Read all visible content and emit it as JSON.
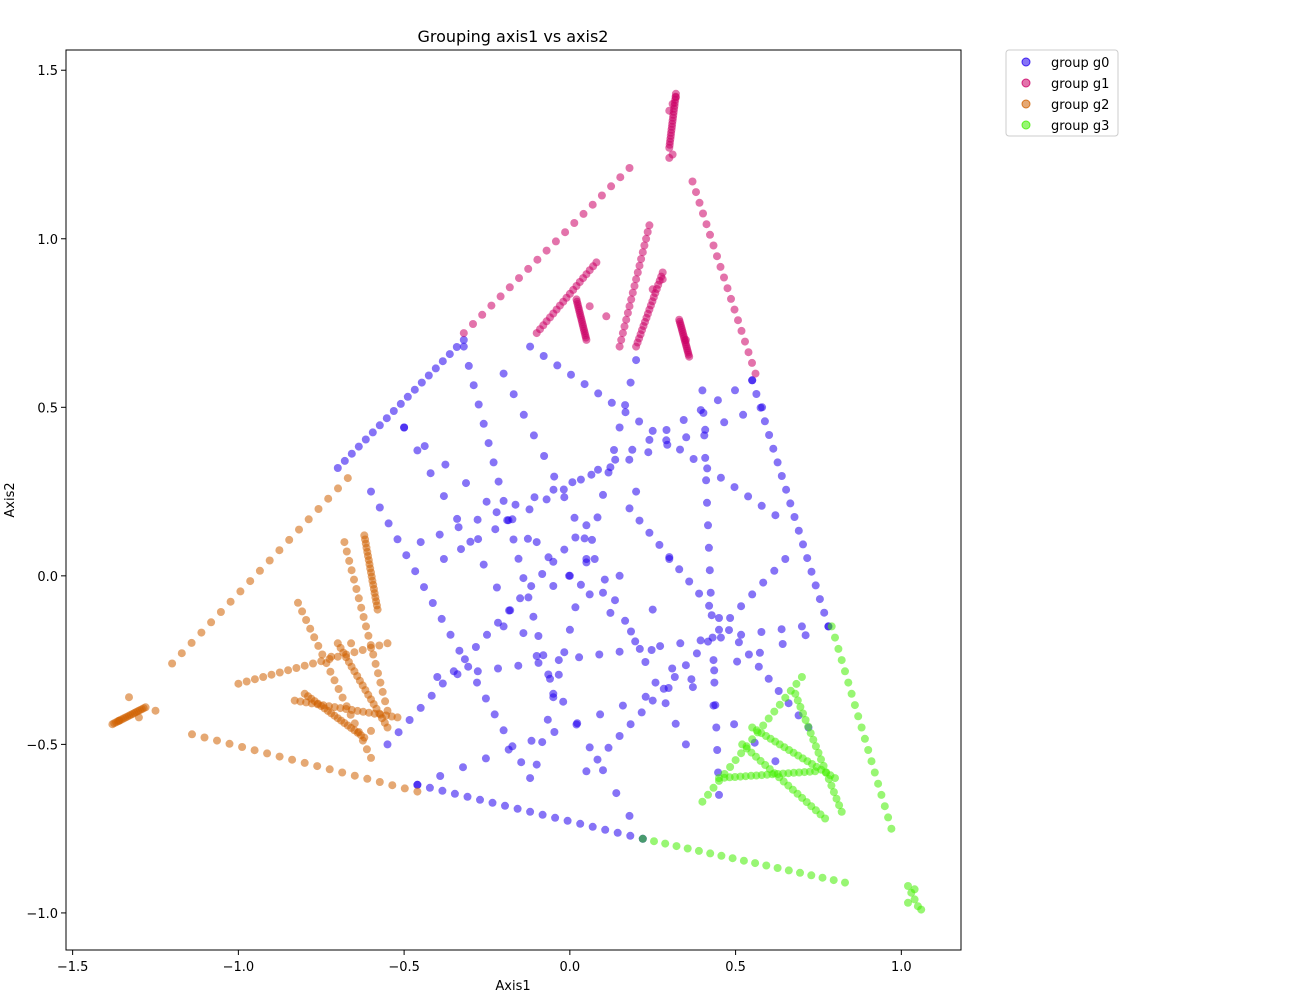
{
  "chart_data": {
    "type": "scatter",
    "title": "Grouping axis1 vs axis2",
    "xlabel": "Axis1",
    "ylabel": "Axis2",
    "xlim": [
      -1.52,
      1.18
    ],
    "ylim": [
      -1.11,
      1.56
    ],
    "x_ticks": [
      {
        "value": -1.5,
        "label": "−1.5"
      },
      {
        "value": -1.0,
        "label": "−1.0"
      },
      {
        "value": -0.5,
        "label": "−0.5"
      },
      {
        "value": 0.0,
        "label": "0.0"
      },
      {
        "value": 0.5,
        "label": "0.5"
      },
      {
        "value": 1.0,
        "label": "1.0"
      }
    ],
    "y_ticks": [
      {
        "value": -1.0,
        "label": "−1.0"
      },
      {
        "value": -0.5,
        "label": "−0.5"
      },
      {
        "value": 0.0,
        "label": "0.0"
      },
      {
        "value": 0.5,
        "label": "0.5"
      },
      {
        "value": 1.0,
        "label": "1.0"
      },
      {
        "value": 1.5,
        "label": "1.5"
      }
    ],
    "grid": false,
    "legend_position": "outside-top-right",
    "series": [
      {
        "name": "group g0",
        "color": "#2200ee",
        "segments": [
          [
            [
              -0.7,
              0.32
            ],
            [
              -0.32,
              0.7
            ]
          ],
          [
            [
              0.55,
              0.58
            ],
            [
              0.78,
              -0.15
            ]
          ],
          [
            [
              -0.46,
              -0.62
            ],
            [
              0.22,
              -0.78
            ]
          ],
          [
            [
              -0.5,
              0.44
            ],
            [
              0.62,
              -0.55
            ]
          ],
          [
            [
              -0.5,
              0.44
            ],
            [
              0.22,
              -0.78
            ]
          ],
          [
            [
              0.78,
              -0.15
            ],
            [
              -0.46,
              -0.62
            ]
          ],
          [
            [
              -0.12,
              0.68
            ],
            [
              0.62,
              0.18
            ]
          ],
          [
            [
              0.58,
              0.5
            ],
            [
              -0.45,
              0.1
            ]
          ],
          [
            [
              -0.1,
              -0.56
            ],
            [
              0.2,
              0.64
            ]
          ],
          [
            [
              -0.4,
              -0.3
            ],
            [
              0.7,
              -0.15
            ]
          ],
          [
            [
              -0.6,
              0.25
            ],
            [
              -0.12,
              -0.6
            ]
          ],
          [
            [
              0.18,
              0.2
            ],
            [
              0.72,
              -0.45
            ]
          ],
          [
            [
              -0.38,
              0.05
            ],
            [
              0.55,
              0.58
            ]
          ],
          [
            [
              -0.32,
              0.68
            ],
            [
              -0.05,
              -0.35
            ]
          ],
          [
            [
              0.4,
              0.55
            ],
            [
              0.45,
              -0.65
            ]
          ],
          [
            [
              -0.55,
              -0.5
            ],
            [
              0.05,
              0.15
            ]
          ],
          [
            [
              0.05,
              -0.58
            ],
            [
              0.65,
              0.05
            ]
          ],
          [
            [
              -0.2,
              0.6
            ],
            [
              0.35,
              -0.5
            ]
          ]
        ],
        "points": [
          [
            0.0,
            0.0
          ],
          [
            0.05,
            0.05
          ],
          [
            -0.05,
            -0.03
          ],
          [
            0.1,
            -0.05
          ],
          [
            0.15,
            0.0
          ],
          [
            -0.1,
            0.1
          ],
          [
            0.25,
            -0.1
          ],
          [
            0.3,
            0.05
          ],
          [
            -0.2,
            -0.15
          ],
          [
            0.2,
            0.25
          ]
        ]
      },
      {
        "name": "group g1",
        "color": "#cc0066",
        "segments": [
          [
            [
              -0.32,
              0.72
            ],
            [
              0.18,
              1.21
            ]
          ],
          [
            [
              0.37,
              1.17
            ],
            [
              0.56,
              0.6
            ]
          ],
          [
            [
              0.3,
              1.27
            ],
            [
              0.32,
              1.43
            ]
          ],
          [
            [
              -0.1,
              0.72
            ],
            [
              0.08,
              0.93
            ]
          ],
          [
            [
              0.15,
              0.68
            ],
            [
              0.24,
              1.04
            ]
          ],
          [
            [
              0.2,
              0.68
            ],
            [
              0.28,
              0.9
            ]
          ],
          [
            [
              0.33,
              0.76
            ],
            [
              0.36,
              0.65
            ]
          ],
          [
            [
              0.05,
              0.7
            ],
            [
              0.02,
              0.82
            ]
          ]
        ],
        "points": [
          [
            0.3,
            1.24
          ],
          [
            0.31,
            1.25
          ],
          [
            0.32,
            1.42
          ],
          [
            0.31,
            1.4
          ],
          [
            0.3,
            1.38
          ],
          [
            0.28,
            0.88
          ],
          [
            0.25,
            0.85
          ],
          [
            0.06,
            0.8
          ],
          [
            0.11,
            0.77
          ],
          [
            0.35,
            0.7
          ]
        ]
      },
      {
        "name": "group g2",
        "color": "#d06000",
        "segments": [
          [
            [
              -1.2,
              -0.26
            ],
            [
              -0.67,
              0.29
            ]
          ],
          [
            [
              -1.14,
              -0.47
            ],
            [
              -0.46,
              -0.64
            ]
          ],
          [
            [
              -1.38,
              -0.44
            ],
            [
              -1.28,
              -0.39
            ]
          ],
          [
            [
              -1.0,
              -0.32
            ],
            [
              -0.55,
              -0.2
            ]
          ],
          [
            [
              -0.83,
              -0.37
            ],
            [
              -0.52,
              -0.42
            ]
          ],
          [
            [
              -0.82,
              -0.08
            ],
            [
              -0.6,
              -0.54
            ]
          ],
          [
            [
              -0.68,
              0.1
            ],
            [
              -0.55,
              -0.4
            ]
          ],
          [
            [
              -0.62,
              0.12
            ],
            [
              -0.58,
              -0.1
            ]
          ],
          [
            [
              -0.8,
              -0.35
            ],
            [
              -0.62,
              -0.48
            ]
          ],
          [
            [
              -0.7,
              -0.2
            ],
            [
              -0.55,
              -0.45
            ]
          ]
        ],
        "points": [
          [
            -1.33,
            -0.36
          ],
          [
            -1.25,
            -0.4
          ],
          [
            -1.3,
            -0.42
          ],
          [
            -1.36,
            -0.43
          ],
          [
            -0.6,
            -0.46
          ],
          [
            -0.66,
            -0.2
          ],
          [
            -0.72,
            -0.24
          ]
        ]
      },
      {
        "name": "group g3",
        "color": "#44ee00",
        "segments": [
          [
            [
              0.79,
              -0.15
            ],
            [
              0.97,
              -0.75
            ]
          ],
          [
            [
              0.22,
              -0.78
            ],
            [
              0.83,
              -0.91
            ]
          ],
          [
            [
              0.4,
              -0.67
            ],
            [
              0.7,
              -0.3
            ]
          ],
          [
            [
              0.52,
              -0.5
            ],
            [
              0.77,
              -0.72
            ]
          ],
          [
            [
              0.45,
              -0.6
            ],
            [
              0.74,
              -0.58
            ]
          ],
          [
            [
              0.55,
              -0.45
            ],
            [
              0.8,
              -0.6
            ]
          ],
          [
            [
              0.68,
              -0.35
            ],
            [
              0.82,
              -0.7
            ]
          ]
        ],
        "points": [
          [
            1.02,
            -0.92
          ],
          [
            1.04,
            -0.96
          ],
          [
            1.05,
            -0.98
          ],
          [
            1.03,
            -0.94
          ],
          [
            1.06,
            -0.99
          ],
          [
            1.04,
            -0.93
          ],
          [
            1.02,
            -0.97
          ]
        ]
      }
    ]
  }
}
